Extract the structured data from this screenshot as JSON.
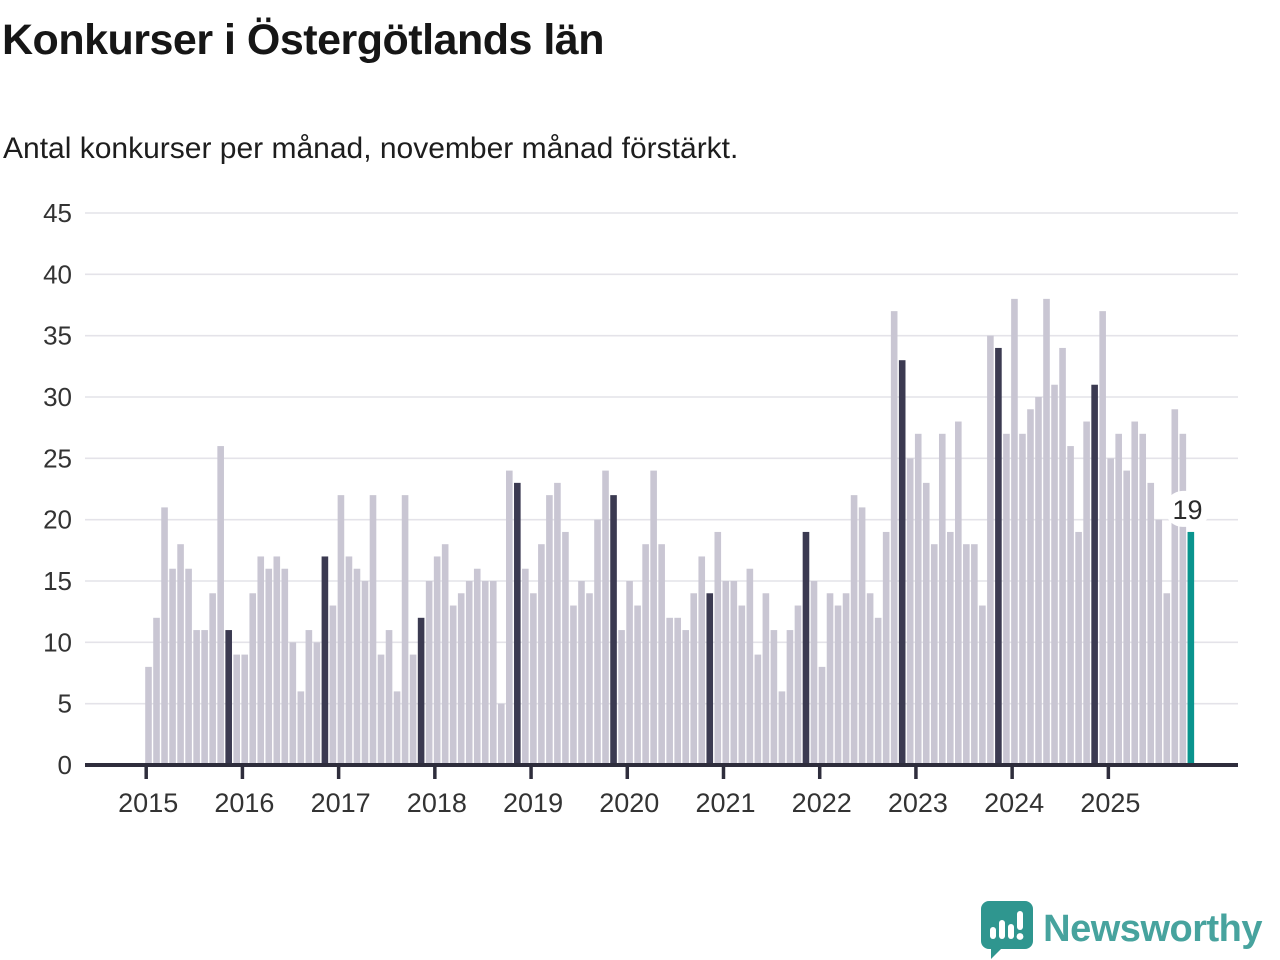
{
  "title": "Konkurser i Östergötlands län",
  "subtitle": "Antal konkurser per månad, november månad förstärkt.",
  "chart_data": {
    "type": "bar",
    "title": "Konkurser i Östergötlands län",
    "ylabel": "",
    "xlabel": "",
    "ylim": [
      0,
      45
    ],
    "y_ticks": [
      0,
      5,
      10,
      15,
      20,
      25,
      30,
      35,
      40,
      45
    ],
    "grid": true,
    "highlight_rule": "november bars dark, latest month teal with value label",
    "years": [
      {
        "year": "2015",
        "values": [
          8,
          12,
          21,
          16,
          18,
          16,
          11,
          11,
          14,
          26,
          11,
          9
        ]
      },
      {
        "year": "2016",
        "values": [
          9,
          14,
          17,
          16,
          17,
          16,
          10,
          6,
          11,
          10,
          17,
          13
        ]
      },
      {
        "year": "2017",
        "values": [
          22,
          17,
          16,
          15,
          22,
          9,
          11,
          6,
          22,
          9,
          12,
          15
        ]
      },
      {
        "year": "2018",
        "values": [
          17,
          18,
          13,
          14,
          15,
          16,
          15,
          15,
          5,
          24,
          23,
          16
        ]
      },
      {
        "year": "2019",
        "values": [
          14,
          18,
          22,
          23,
          19,
          13,
          15,
          14,
          20,
          24,
          22,
          11
        ]
      },
      {
        "year": "2020",
        "values": [
          15,
          13,
          18,
          24,
          18,
          12,
          12,
          11,
          14,
          17,
          14,
          19
        ]
      },
      {
        "year": "2021",
        "values": [
          15,
          15,
          13,
          16,
          9,
          14,
          11,
          6,
          11,
          13,
          19,
          15
        ]
      },
      {
        "year": "2022",
        "values": [
          8,
          14,
          13,
          14,
          22,
          21,
          14,
          12,
          19,
          37,
          33,
          25
        ]
      },
      {
        "year": "2023",
        "values": [
          27,
          23,
          18,
          27,
          19,
          28,
          18,
          18,
          13,
          35,
          34,
          27
        ]
      },
      {
        "year": "2024",
        "values": [
          38,
          27,
          29,
          30,
          38,
          31,
          34,
          26,
          19,
          28,
          31,
          37
        ]
      },
      {
        "year": "2025",
        "values": [
          25,
          27,
          24,
          28,
          27,
          23,
          20,
          14,
          29,
          27,
          19
        ]
      }
    ]
  },
  "annotation": {
    "last_value_label": "19"
  },
  "colors": {
    "bar_default": "#c9c6d3",
    "bar_november": "#3b3a51",
    "bar_current": "#0a948e",
    "gridline": "#e4e3e9",
    "axis": "#2e2d3c",
    "tick_label": "#333333",
    "title_text": "#161616",
    "logo_teal": "#2f968f",
    "logo_text": "#47a39e"
  },
  "logo": {
    "text": "Newsworthy",
    "icon": "speech-bubble-with-bar-chart-and-exclamation"
  }
}
